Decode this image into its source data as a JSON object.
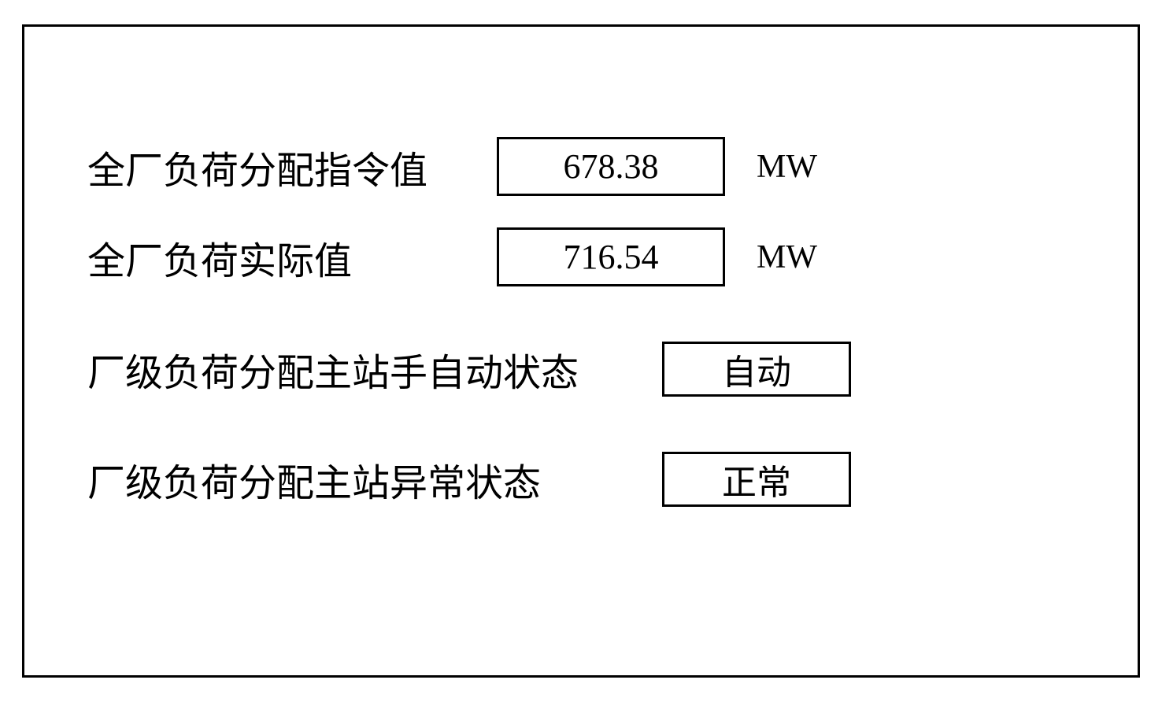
{
  "panel": {
    "border_color": "#000000",
    "background_color": "#ffffff"
  },
  "rows": [
    {
      "label": "全厂负荷分配指令值",
      "value": "678.38",
      "unit": "MW"
    },
    {
      "label": "全厂负荷实际值",
      "value": "716.54",
      "unit": "MW"
    },
    {
      "label": "厂级负荷分配主站手自动状态",
      "status": "自动"
    },
    {
      "label": "厂级负荷分配主站异常状态",
      "status": "正常"
    }
  ],
  "typography": {
    "label_fontsize": 48,
    "value_fontsize": 44,
    "unit_fontsize": 42,
    "status_fontsize": 44,
    "font_family_cjk": "SimSun",
    "font_family_latin": "Times New Roman",
    "text_color": "#000000"
  },
  "box_style": {
    "border_width": 3,
    "border_color": "#000000",
    "value_box_width": 290,
    "value_box_height": 75,
    "status_box_width": 240,
    "status_box_height": 70
  }
}
